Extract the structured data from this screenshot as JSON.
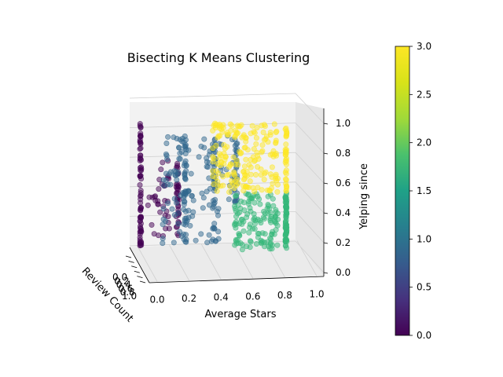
{
  "chart_data": {
    "type": "scatter",
    "projection": "3d",
    "title": "Bisecting K Means Clustering",
    "xlabel": "Average Stars",
    "ylabel": "Review Count",
    "zlabel": "Yelping since",
    "xlim": [
      0.0,
      1.0
    ],
    "zlim": [
      0.0,
      1.0
    ],
    "x_ticks": [
      "0.0",
      "0.2",
      "0.4",
      "0.6",
      "0.8",
      "1.0"
    ],
    "z_ticks": [
      "0.0",
      "0.2",
      "0.4",
      "0.6",
      "0.8",
      "1.0"
    ],
    "y_ticks": [
      "0.0",
      "0.2",
      "0.4",
      "0.6",
      "0.8",
      "1.0"
    ],
    "colorbar": {
      "range": [
        0.0,
        3.0
      ],
      "ticks": [
        "0.0",
        "0.5",
        "1.0",
        "1.5",
        "2.0",
        "2.5",
        "3.0"
      ],
      "colormap": "viridis"
    },
    "clusters": [
      {
        "label": 0,
        "color": "#440154",
        "x_range": [
          0.0,
          0.2
        ],
        "z_range": [
          0.05,
          1.0
        ],
        "approx_points": 140
      },
      {
        "label": 1,
        "color": "#31688e",
        "x_range": [
          0.1,
          0.6
        ],
        "z_range": [
          0.05,
          0.9
        ],
        "approx_points": 230
      },
      {
        "label": 2,
        "color": "#35b779",
        "x_range": [
          0.55,
          0.85
        ],
        "z_range": [
          0.0,
          0.45
        ],
        "approx_points": 200
      },
      {
        "label": 3,
        "color": "#fde725",
        "x_range": [
          0.45,
          0.85
        ],
        "z_range": [
          0.4,
          1.0
        ],
        "approx_points": 220
      }
    ],
    "grid": true
  }
}
